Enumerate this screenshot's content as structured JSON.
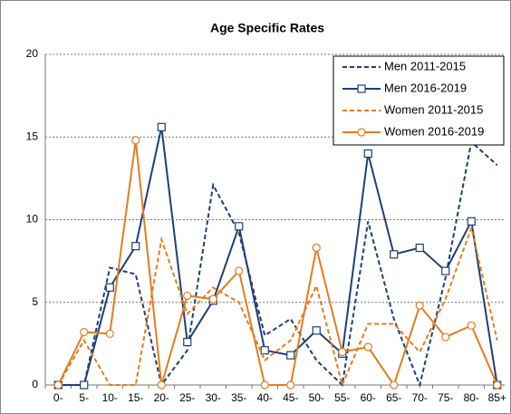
{
  "chart_data": {
    "type": "line",
    "title": "Age Specific Rates",
    "categories": [
      "0-",
      "5-",
      "10-",
      "15-",
      "20-",
      "25-",
      "30-",
      "35-",
      "40-",
      "45-",
      "50-",
      "55-",
      "60-",
      "65-",
      "70-",
      "75-",
      "80-",
      "85+"
    ],
    "series": [
      {
        "name": "Men 2011-2015",
        "color": "#1f3f77",
        "dash": true,
        "marker": "none",
        "values": [
          0,
          0,
          7.1,
          6.7,
          0,
          2.1,
          12.1,
          9.2,
          3.0,
          4.0,
          1.5,
          0,
          9.9,
          4.0,
          0,
          6.5,
          14.7,
          13.3
        ]
      },
      {
        "name": "Men 2016-2019",
        "color": "#1f3f77",
        "dash": false,
        "marker": "square",
        "values": [
          0,
          0,
          5.9,
          8.4,
          15.6,
          2.6,
          5.1,
          9.6,
          2.1,
          1.8,
          3.3,
          1.9,
          14.0,
          7.9,
          8.3,
          6.9,
          9.9,
          0
        ]
      },
      {
        "name": "Women 2011-2015",
        "color": "#e57c1e",
        "dash": true,
        "marker": "none",
        "values": [
          0,
          2.7,
          0,
          0,
          8.8,
          4.3,
          5.9,
          5.0,
          1.5,
          2.7,
          6.0,
          0,
          3.7,
          3.7,
          2.0,
          5.2,
          9.5,
          2.7
        ]
      },
      {
        "name": "Women 2016-2019",
        "color": "#e57c1e",
        "dash": false,
        "marker": "circle",
        "values": [
          0,
          3.2,
          3.1,
          14.8,
          0,
          5.4,
          5.2,
          6.9,
          0,
          0,
          8.3,
          2.0,
          2.3,
          0,
          4.8,
          2.9,
          3.6,
          0
        ]
      }
    ],
    "ylim": [
      0,
      20
    ],
    "yticks": [
      0,
      5,
      10,
      15,
      20
    ],
    "grid": true,
    "legend": "top-right"
  }
}
